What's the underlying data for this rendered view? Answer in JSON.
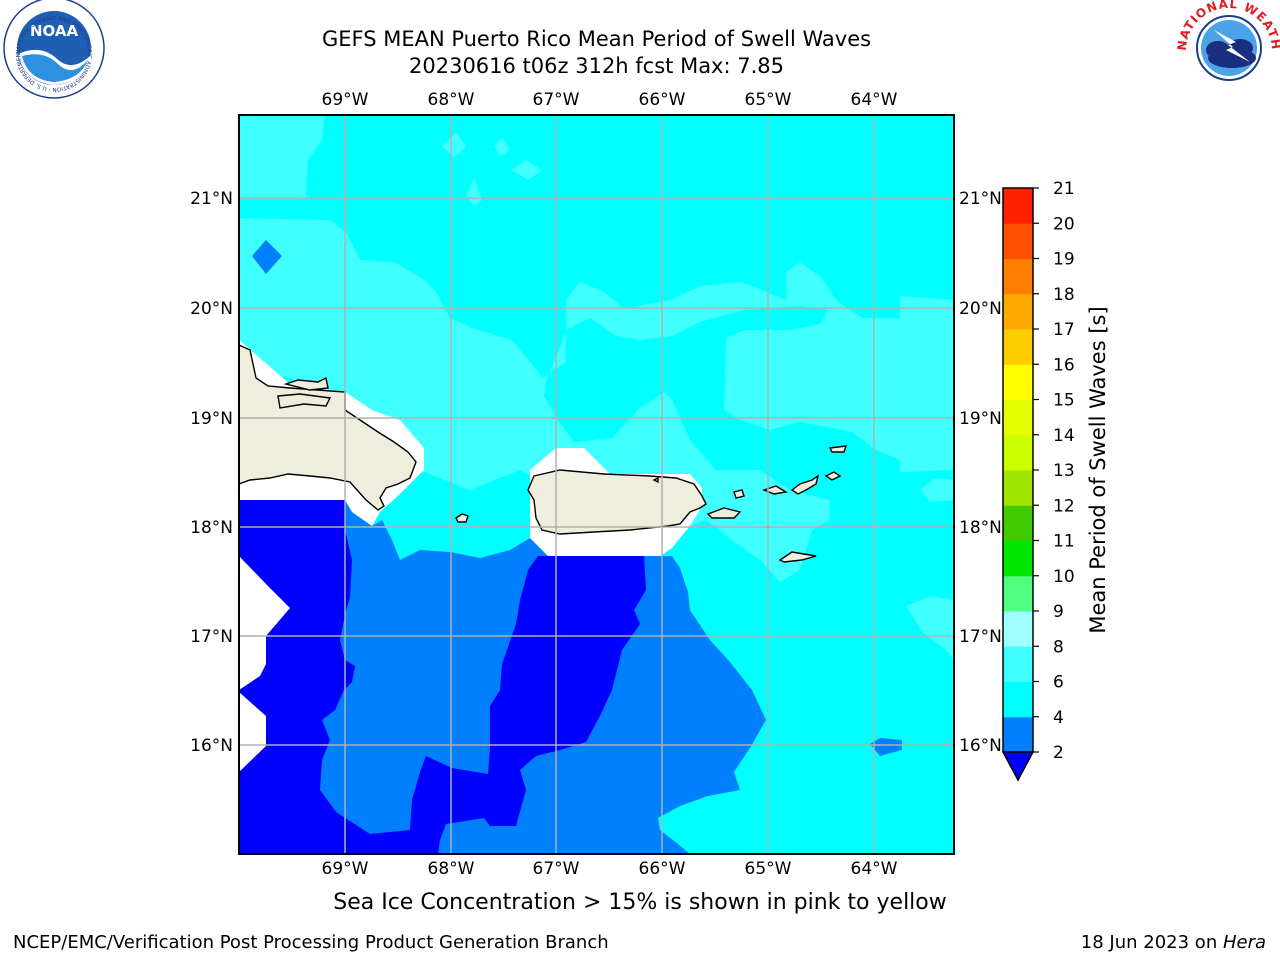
{
  "title": {
    "line1": "GEFS MEAN Puerto Rico Mean Period of Swell Waves",
    "line2": "20230616 t06z 312h fcst   Max: 7.85"
  },
  "map": {
    "lon_ticks": [
      "69°W",
      "68°W",
      "67°W",
      "66°W",
      "65°W",
      "64°W"
    ],
    "lat_ticks": [
      "21°N",
      "20°N",
      "19°N",
      "18°N",
      "17°N",
      "16°N"
    ],
    "lon_range": [
      -70.0,
      -63.25
    ],
    "lat_range": [
      15.0,
      21.75
    ],
    "land_labels": [],
    "colors": {
      "land": "#efeedc",
      "level_2_4": "#0080ff",
      "level_4_6": "#00ffff",
      "level_6_8": "#40ffff",
      "below_2": "#0000ff",
      "grid": "#b0b0b0"
    }
  },
  "colorbar": {
    "label": "Mean Period of Swell Waves [s]",
    "levels": [
      2,
      4,
      6,
      8,
      9,
      10,
      11,
      12,
      13,
      14,
      15,
      16,
      17,
      18,
      19,
      20,
      21
    ],
    "level_labels": [
      "2",
      "4",
      "6",
      "8",
      "9",
      "10",
      "11",
      "12",
      "13",
      "14",
      "15",
      "16",
      "17",
      "18",
      "19",
      "20",
      "21"
    ],
    "colors": [
      "#0080ff",
      "#00ffff",
      "#40ffff",
      "#a0ffff",
      "#50ff80",
      "#00e600",
      "#40cc00",
      "#a0e600",
      "#ccff00",
      "#e6ff00",
      "#ffff00",
      "#ffcc00",
      "#ffaa00",
      "#ff8000",
      "#ff5000",
      "#ff2000"
    ],
    "extend_color": "#0000ff"
  },
  "note": "Sea Ice Concentration > 15% is shown in pink to yellow",
  "footer": {
    "left": "NCEP/EMC/Verification Post Processing Product Generation Branch",
    "right_prefix": "18 Jun 2023 on ",
    "right_host": "Hera"
  },
  "logos": {
    "left": "NOAA",
    "left_ring": "NATIONAL OCEANIC AND ATMOSPHERIC ADMINISTRATION · U.S. DEPARTMENT OF COMMERCE",
    "right_ring": "NATIONAL WEATHER SERVICE"
  }
}
